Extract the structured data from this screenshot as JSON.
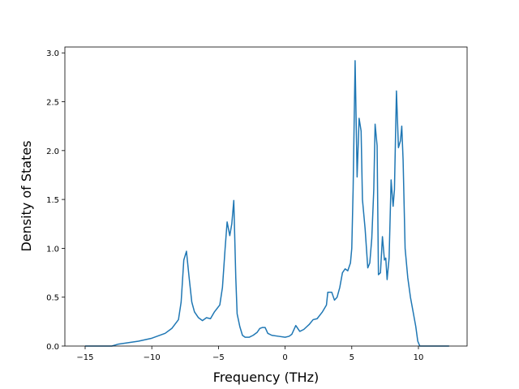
{
  "chart_data": {
    "type": "line",
    "xlabel": "Frequency (THz)",
    "ylabel": "Density of States",
    "color": "#1f77b4",
    "x": [
      -15,
      -13,
      -12.5,
      -11,
      -10,
      -9,
      -8.5,
      -8,
      -7.8,
      -7.6,
      -7.4,
      -7.2,
      -7.0,
      -6.8,
      -6.5,
      -6.2,
      -5.9,
      -5.6,
      -5.3,
      -4.9,
      -4.7,
      -4.5,
      -4.35,
      -4.15,
      -4.0,
      -3.85,
      -3.7,
      -3.6,
      -3.4,
      -3.2,
      -3.0,
      -2.7,
      -2.4,
      -2.1,
      -1.9,
      -1.7,
      -1.5,
      -1.3,
      -1.0,
      -0.5,
      0,
      0.3,
      0.5,
      0.8,
      1.1,
      1.4,
      1.8,
      2.1,
      2.4,
      2.8,
      3.1,
      3.2,
      3.4,
      3.5,
      3.7,
      3.9,
      4.1,
      4.3,
      4.5,
      4.7,
      4.9,
      5.0,
      5.1,
      5.25,
      5.4,
      5.55,
      5.7,
      5.8,
      6.0,
      6.2,
      6.35,
      6.5,
      6.65,
      6.75,
      6.9,
      7.0,
      7.15,
      7.3,
      7.45,
      7.55,
      7.65,
      7.8,
      7.95,
      8.1,
      8.2,
      8.35,
      8.5,
      8.65,
      8.75,
      8.85,
      9.0,
      9.2,
      9.4,
      9.6,
      9.8,
      9.95,
      10.1,
      10.5,
      12.3
    ],
    "values": [
      0,
      0,
      0.02,
      0.05,
      0.08,
      0.13,
      0.18,
      0.27,
      0.45,
      0.88,
      0.97,
      0.7,
      0.45,
      0.35,
      0.29,
      0.26,
      0.29,
      0.28,
      0.35,
      0.42,
      0.6,
      1.0,
      1.27,
      1.13,
      1.25,
      1.49,
      0.7,
      0.33,
      0.2,
      0.11,
      0.09,
      0.09,
      0.11,
      0.14,
      0.18,
      0.19,
      0.19,
      0.13,
      0.11,
      0.1,
      0.09,
      0.1,
      0.12,
      0.21,
      0.15,
      0.17,
      0.22,
      0.27,
      0.28,
      0.35,
      0.42,
      0.55,
      0.55,
      0.55,
      0.47,
      0.5,
      0.6,
      0.75,
      0.79,
      0.77,
      0.85,
      1.0,
      1.6,
      2.92,
      1.73,
      2.33,
      2.2,
      1.5,
      1.2,
      0.8,
      0.85,
      1.1,
      1.6,
      2.27,
      2.05,
      0.73,
      0.75,
      1.12,
      0.88,
      0.9,
      0.68,
      0.9,
      1.7,
      1.43,
      1.6,
      2.61,
      2.03,
      2.1,
      2.25,
      1.9,
      1.0,
      0.7,
      0.5,
      0.35,
      0.2,
      0.05,
      0,
      0,
      0
    ],
    "xlim": [
      -16.52,
      13.65
    ],
    "ylim": [
      0,
      3.06
    ],
    "xticks": [
      {
        "value": -15,
        "label": "−15"
      },
      {
        "value": -10,
        "label": "−10"
      },
      {
        "value": -5,
        "label": "−5"
      },
      0,
      5,
      10
    ],
    "yticks": [
      {
        "value": 0,
        "label": "0.0"
      },
      0.5,
      {
        "value": 1,
        "label": "1.0"
      },
      1.5,
      {
        "value": 2,
        "label": "2.0"
      },
      2.5,
      {
        "value": 3,
        "label": "3.0"
      }
    ]
  }
}
